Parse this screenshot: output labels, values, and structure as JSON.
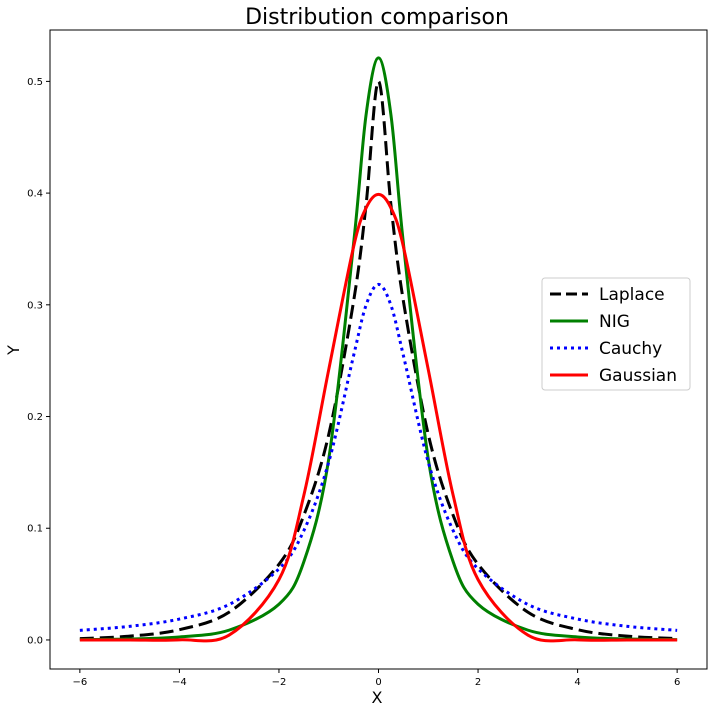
{
  "chart_data": {
    "type": "line",
    "title": "Distribution comparison",
    "xlabel": "X",
    "ylabel": "Y",
    "xlim": [
      -6.6,
      6.6
    ],
    "ylim": [
      -0.026,
      0.546
    ],
    "xticks": [
      -6,
      -4,
      -2,
      0,
      2,
      4,
      6
    ],
    "xtick_labels": [
      "−6",
      "−4",
      "−2",
      "0",
      "2",
      "4",
      "6"
    ],
    "yticks": [
      0.0,
      0.1,
      0.2,
      0.3,
      0.4,
      0.5
    ],
    "ytick_labels": [
      "0.0",
      "0.1",
      "0.2",
      "0.3",
      "0.4",
      "0.5"
    ],
    "grid": false,
    "legend_position": "right",
    "x": [
      -6,
      -5,
      -4,
      -3,
      -2,
      -1.5,
      -1,
      -0.5,
      -0.25,
      0,
      0.25,
      0.5,
      1,
      1.5,
      2,
      3,
      4,
      5,
      6
    ],
    "series": [
      {
        "name": "Laplace",
        "color": "#000000",
        "style": "dashed",
        "values": [
          0.0012,
          0.0034,
          0.0092,
          0.0249,
          0.0677,
          0.1116,
          0.1839,
          0.3033,
          0.3894,
          0.5,
          0.3894,
          0.3033,
          0.1839,
          0.1116,
          0.0677,
          0.0249,
          0.0092,
          0.0034,
          0.0012
        ]
      },
      {
        "name": "NIG",
        "color": "#008000",
        "style": "solid",
        "values": [
          0.0003,
          0.0009,
          0.0027,
          0.0088,
          0.032,
          0.07,
          0.162,
          0.355,
          0.47,
          0.521,
          0.47,
          0.355,
          0.162,
          0.07,
          0.032,
          0.0088,
          0.0027,
          0.0009,
          0.0003
        ]
      },
      {
        "name": "Cauchy",
        "color": "#0000ff",
        "style": "dotted",
        "values": [
          0.0086,
          0.0122,
          0.0187,
          0.0318,
          0.0637,
          0.0979,
          0.1592,
          0.2546,
          0.2996,
          0.3183,
          0.2996,
          0.2546,
          0.1592,
          0.0979,
          0.0637,
          0.0318,
          0.0187,
          0.0122,
          0.0086
        ]
      },
      {
        "name": "Gaussian",
        "color": "#ff0000",
        "style": "solid",
        "values": [
          0.0,
          0.0,
          0.0001,
          0.0044,
          0.054,
          0.1295,
          0.242,
          0.3521,
          0.3867,
          0.3989,
          0.3867,
          0.3521,
          0.242,
          0.1295,
          0.054,
          0.0044,
          0.0001,
          0.0,
          0.0
        ]
      }
    ]
  }
}
